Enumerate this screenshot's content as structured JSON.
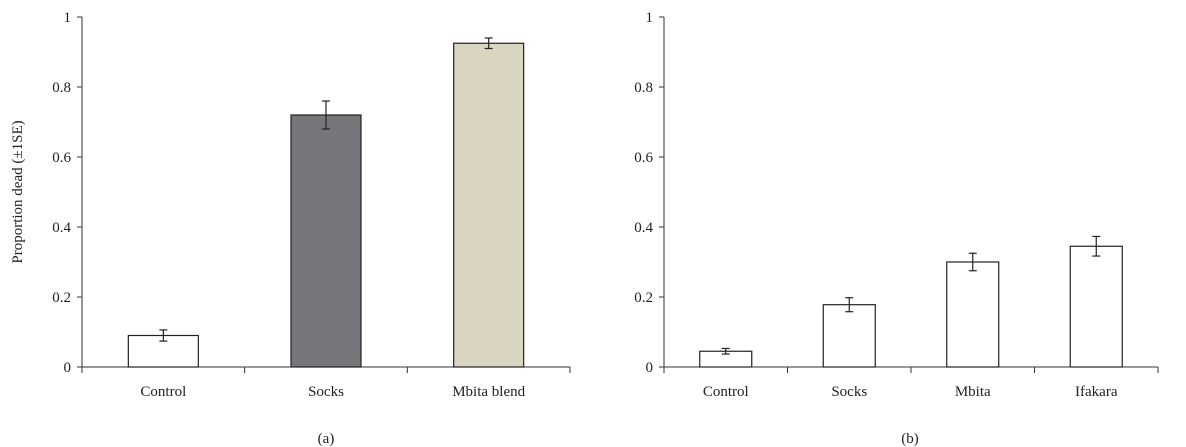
{
  "chart_data": [
    {
      "type": "bar",
      "panel_label": "(a)",
      "ylabel": "Proportion dead (±1SE)",
      "ylim": [
        0,
        1
      ],
      "yticks": [
        0,
        0.2,
        0.4,
        0.6,
        0.8,
        1
      ],
      "ytick_labels": [
        "0",
        "0.2",
        "0.4",
        "0.6",
        "0.8",
        "1"
      ],
      "categories": [
        "Control",
        "Socks",
        "Mbita blend"
      ],
      "values": [
        0.09,
        0.72,
        0.925
      ],
      "errors": [
        0.016,
        0.04,
        0.015
      ],
      "colors": [
        "#ffffff",
        "#76777b",
        "#d9d5c0"
      ],
      "grid": false
    },
    {
      "type": "bar",
      "panel_label": "(b)",
      "ylabel": "",
      "ylim": [
        0,
        1
      ],
      "yticks": [
        0,
        0.2,
        0.4,
        0.6,
        0.8,
        1
      ],
      "ytick_labels": [
        "0",
        "0.2",
        "0.4",
        "0.6",
        "0.8",
        "1"
      ],
      "categories": [
        "Control",
        "Socks",
        "Mbita",
        "Ifakara"
      ],
      "values": [
        0.045,
        0.178,
        0.3,
        0.345
      ],
      "errors": [
        0.008,
        0.02,
        0.025,
        0.028
      ],
      "colors": [
        "#ffffff",
        "#ffffff",
        "#ffffff",
        "#ffffff"
      ],
      "grid": false
    }
  ]
}
